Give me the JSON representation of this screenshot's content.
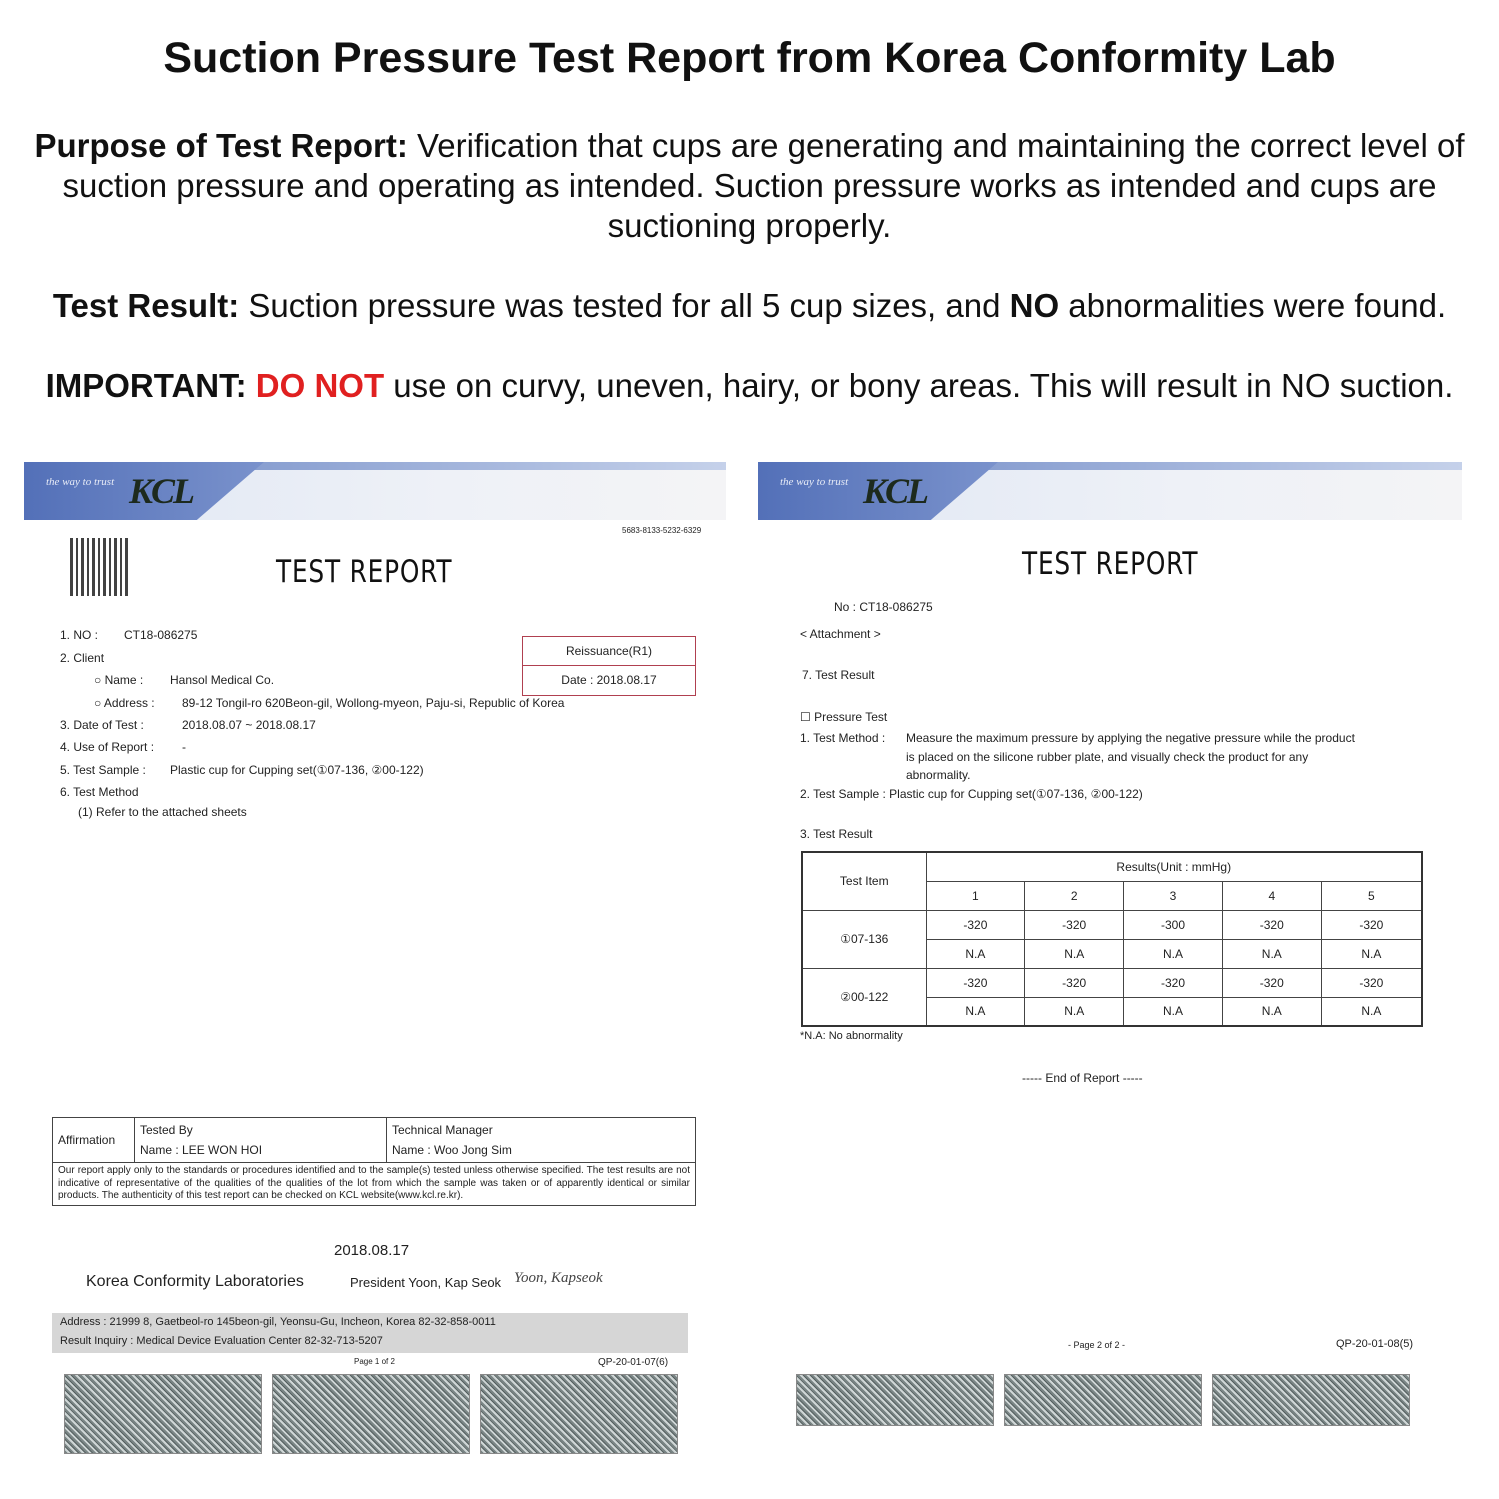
{
  "header": {
    "title": "Suction Pressure Test Report from Korea Conformity Lab",
    "purpose_label": "Purpose of Test Report:",
    "purpose_text_1": " Verification that cups are generating and maintaining the correct level of",
    "purpose_text_2": "suction pressure and operating as intended. Suction pressure works as intended and cups are",
    "purpose_text_3": "suctioning properly.",
    "result_label": "Test Result:",
    "result_text_a": " Suction pressure was tested for all 5 cup sizes, and ",
    "result_no": "NO",
    "result_text_b": " abnormalities were found.",
    "important_label": "IMPORTANT:",
    "important_red": " DO NOT",
    "important_text": " use on curvy, uneven, hairy, or bony areas. This will result in NO suction.",
    "accent_red": "#e02020"
  },
  "page1": {
    "logo_tagline": "the way to trust",
    "logo": "KCL",
    "serial": "5683-8133-5232-6329",
    "title": "TEST REPORT",
    "reissuance": "Reissuance(R1)",
    "reissue_date": "Date : 2018.08.17",
    "lines": [
      "1. NO :",
      "CT18-086275",
      "2. Client",
      "○ Name :",
      "Hansol Medical Co.",
      "○ Address :",
      "89-12 Tongil-ro 620Beon-gil, Wollong-myeon, Paju-si, Republic of Korea",
      "3. Date of Test :",
      "2018.08.07 ~ 2018.08.17",
      "4. Use of Report :",
      "-",
      "5. Test Sample :",
      "Plastic cup for Cupping set(①07-136, ②00-122)",
      "6. Test Method",
      "(1) Refer to the attached sheets"
    ],
    "affirmation": "Affirmation",
    "tested_by": "Tested By",
    "tested_name": "Name : LEE WON HOI",
    "tech_manager": "Technical Manager",
    "tech_name": "Name : Woo Jong Sim",
    "disclaimer": "Our report apply only to the standards or procedures identified and to the sample(s) tested unless otherwise specified. The test results are not indicative of representative of the qualities of the qualities of the lot from which the sample was taken or of apparently identical or similar products. The authenticity of this test report can be checked on KCL website(www.kcl.re.kr).",
    "date": "2018.08.17",
    "org": "Korea Conformity Laboratories",
    "president": "President  Yoon, Kap Seok",
    "signature": "Yoon, Kapseok",
    "address": "Address : 21999  8, Gaetbeol-ro 145beon-gil, Yeonsu-Gu, Incheon, Korea  82-32-858-0011",
    "inquiry": "Result Inquiry : Medical Device Evaluation Center 82-32-713-5207",
    "page": "Page 1 of 2",
    "form": "QP-20-01-07(6)"
  },
  "page2": {
    "logo_tagline": "the way to trust",
    "logo": "KCL",
    "title": "TEST REPORT",
    "no": "No : CT18-086275",
    "attachment": "< Attachment >",
    "section": "7. Test Result",
    "pressure_test": "☐ Pressure Test",
    "method_label": "1. Test Method :",
    "method_1": "Measure the maximum pressure by applying the negative pressure while the product",
    "method_2": "is placed on the silicone rubber plate, and visually check the product for any",
    "method_3": "abnormality.",
    "sample": "2. Test Sample : Plastic cup for Cupping set(①07-136, ②00-122)",
    "result_heading": "3. Test Result",
    "table": {
      "item_header": "Test Item",
      "results_header": "Results(Unit : mmHg)",
      "columns": [
        "1",
        "2",
        "3",
        "4",
        "5"
      ],
      "rows": [
        {
          "item": "①07-136",
          "pressure": [
            "-320",
            "-320",
            "-300",
            "-320",
            "-320"
          ],
          "abnormality": [
            "N.A",
            "N.A",
            "N.A",
            "N.A",
            "N.A"
          ]
        },
        {
          "item": "②00-122",
          "pressure": [
            "-320",
            "-320",
            "-320",
            "-320",
            "-320"
          ],
          "abnormality": [
            "N.A",
            "N.A",
            "N.A",
            "N.A",
            "N.A"
          ]
        }
      ]
    },
    "note": "*N.A: No abnormality",
    "end": "----- End of Report -----",
    "page": "- Page 2 of 2 -",
    "form": "QP-20-01-08(5)"
  }
}
